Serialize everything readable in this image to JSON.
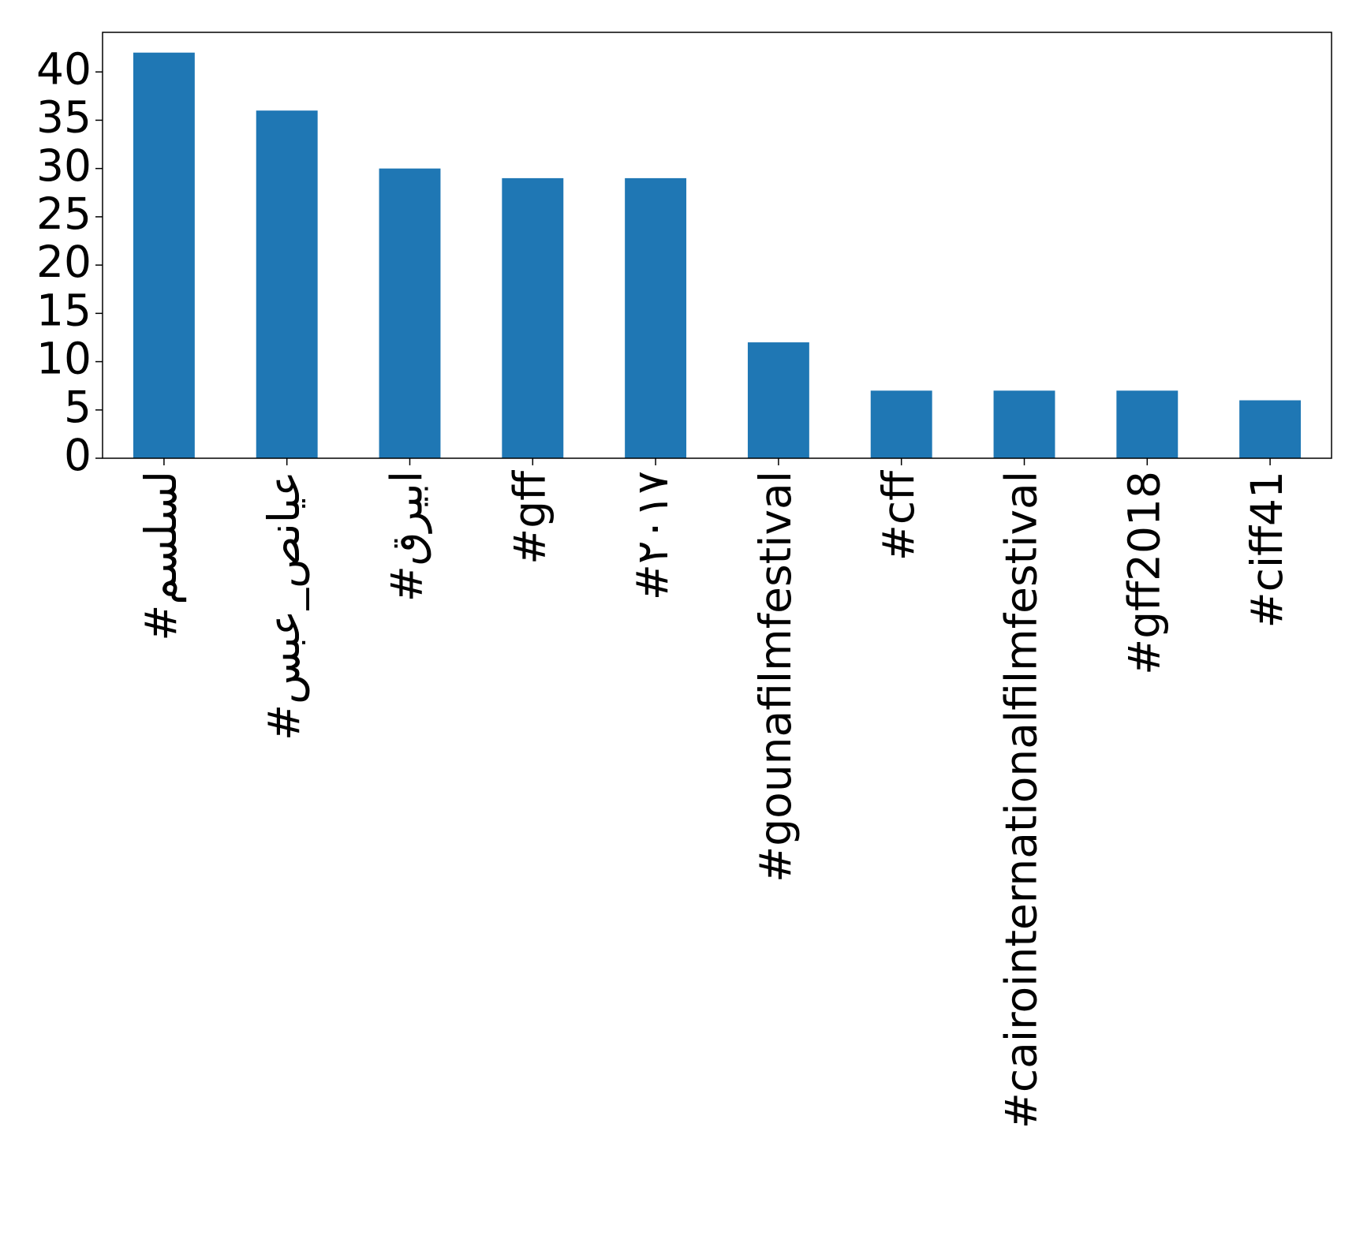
{
  "chart_data": {
    "type": "bar",
    "categories": [
      "#مسلسل",
      "#سبع_صنايع",
      "#قريبا",
      "#gff",
      "#٢٠١٧",
      "#gounafilmfestival",
      "#cff",
      "#cairointernationalfilmfestival",
      "#gff2018",
      "#ciff41"
    ],
    "values": [
      42,
      36,
      30,
      29,
      29,
      12,
      7,
      7,
      7,
      6
    ],
    "color": "#1f77b4",
    "ylim": [
      0,
      44.1
    ],
    "yticks": [
      0,
      5,
      10,
      15,
      20,
      25,
      30,
      35,
      40
    ],
    "grid": false
  }
}
